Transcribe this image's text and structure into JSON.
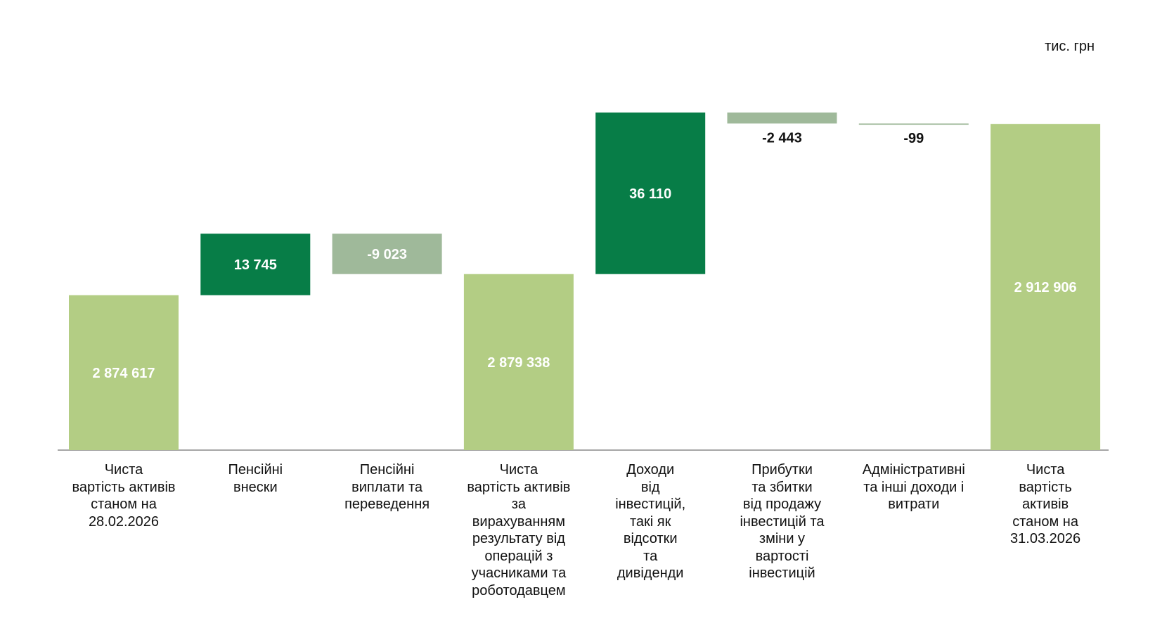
{
  "unit_label": "тис. грн",
  "colors": {
    "total": "#b3cd84",
    "increase": "#077d47",
    "decrease": "#9fb99a",
    "axis": "#888888",
    "label_on_bar": "#ffffff",
    "label_outside": "#111111"
  },
  "chart_data": {
    "type": "bar",
    "subtype": "waterfall",
    "title": "",
    "xlabel": "",
    "ylabel": "",
    "unit": "тис. грн",
    "grid": false,
    "legend": "none",
    "baseline_break": true,
    "categories": [
      "Чиста\nвартість активів\nстаном на\n28.02.2026",
      "Пенсійні\nвнески",
      "Пенсійні\nвиплати та\nпереведення",
      "Чиста\nвартість активів\nза\nвирахуванням\nрезультату від\nоперацій з\nучасниками та\nроботодавцем",
      "Доходи\nвід\nінвестицій,\nтакі як\nвідсотки\nта\nдивіденди",
      "Прибутки\nта збитки\nвід продажу\nінвестицій та\nзміни у\nвартості\nінвестицій",
      "Адміністративні\nта інші доходи і\nвитрати",
      "Чиста\nвартість\nактивів\nстаном на\n31.03.2026"
    ],
    "values": [
      2874617,
      13745,
      -9023,
      2879338,
      36110,
      -2443,
      -99,
      2912906
    ],
    "labels": [
      "2 874 617",
      "13 745",
      "-9 023",
      "2 879 338",
      "36 110",
      "-2 443",
      "-99",
      "2 912 906"
    ],
    "kinds": [
      "total",
      "increase",
      "decrease",
      "total",
      "increase",
      "decrease",
      "decrease",
      "total"
    ]
  }
}
